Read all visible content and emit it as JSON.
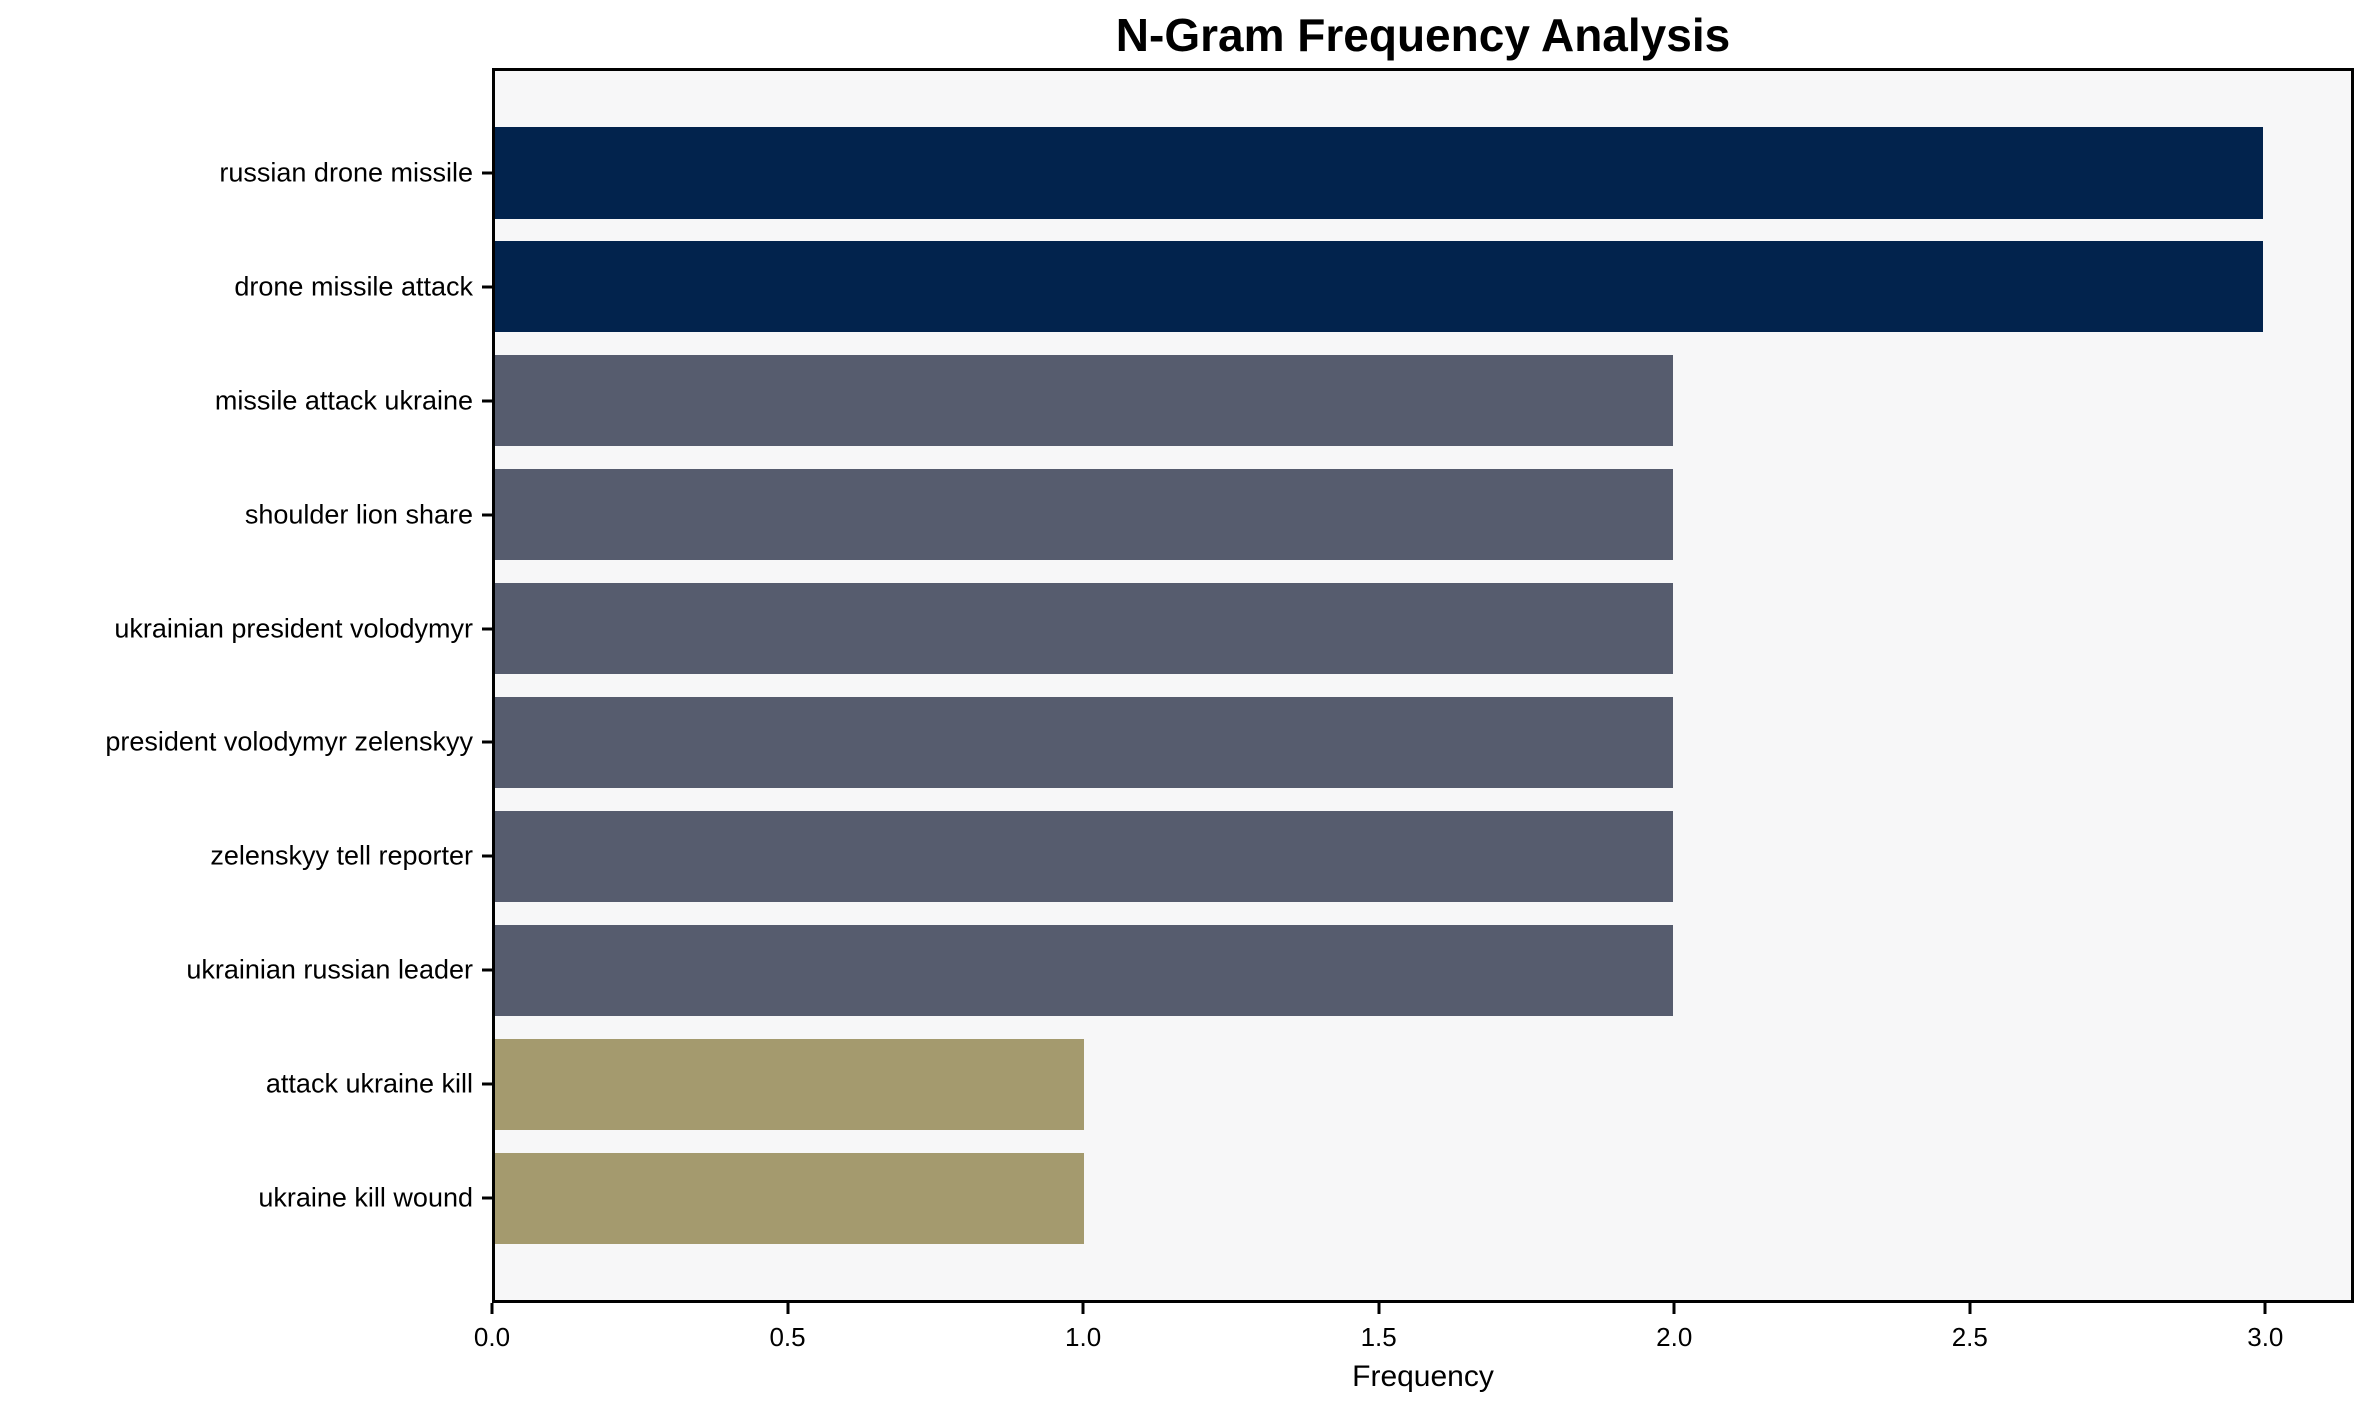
{
  "figure": {
    "background": "#ffffff"
  },
  "chart_data": {
    "type": "bar",
    "orientation": "horizontal",
    "title": "N-Gram Frequency Analysis",
    "xlabel": "Frequency",
    "ylabel": "",
    "categories": [
      "russian drone missile",
      "drone missile attack",
      "missile attack ukraine",
      "shoulder lion share",
      "ukrainian president volodymyr",
      "president volodymyr zelenskyy",
      "zelenskyy tell reporter",
      "ukrainian russian leader",
      "attack ukraine kill",
      "ukraine kill wound"
    ],
    "values": [
      3,
      3,
      2,
      2,
      2,
      2,
      2,
      2,
      1,
      1
    ],
    "bar_colors": [
      "#02234d",
      "#02234d",
      "#565c6e",
      "#565c6e",
      "#565c6e",
      "#565c6e",
      "#565c6e",
      "#565c6e",
      "#a49a6e",
      "#a49a6e"
    ],
    "xlim": [
      0,
      3.15
    ],
    "xticks": [
      0.0,
      0.5,
      1.0,
      1.5,
      2.0,
      2.5,
      3.0
    ],
    "xtick_labels": [
      "0.0",
      "0.5",
      "1.0",
      "1.5",
      "2.0",
      "2.5",
      "3.0"
    ],
    "grid": false,
    "legend_position": "none",
    "colors": {
      "plot_background": "#f7f7f8",
      "figure_background": "#ffffff",
      "spine": "#000000",
      "bar_high": "#02234d",
      "bar_mid": "#565c6e",
      "bar_low": "#a49a6e"
    }
  }
}
